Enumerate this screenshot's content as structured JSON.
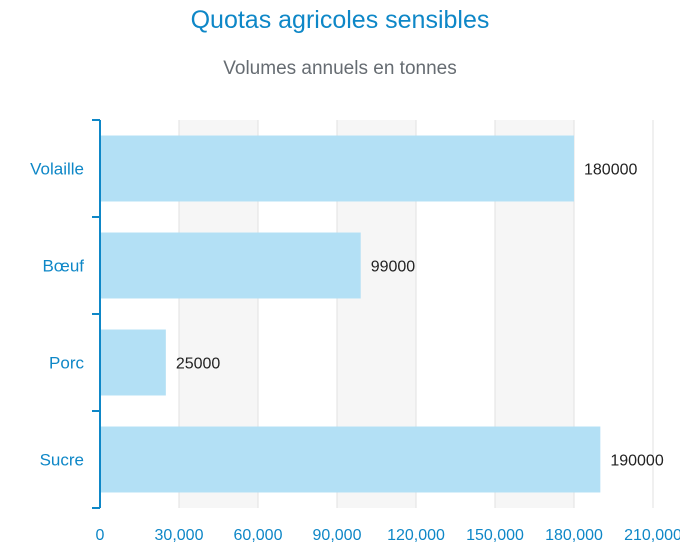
{
  "chart_data": {
    "type": "bar",
    "orientation": "horizontal",
    "title": "Quotas agricoles sensibles",
    "subtitle": "Volumes annuels en tonnes",
    "categories": [
      "Volaille",
      "Bœuf",
      "Porc",
      "Sucre"
    ],
    "values": [
      180000,
      99000,
      25000,
      190000
    ],
    "data_labels": [
      "180000",
      "99000",
      "25000",
      "190000"
    ],
    "xlim": [
      0,
      210000
    ],
    "x_ticks": [
      0,
      30000,
      60000,
      90000,
      120000,
      150000,
      180000,
      210000
    ],
    "x_tick_labels": [
      "0",
      "30,000",
      "60,000",
      "90,000",
      "120,000",
      "150,000",
      "180,000",
      "210,000"
    ],
    "grid": true,
    "legend": "none",
    "colors": {
      "bar": "#b3e0f5",
      "title": "#0e87c7",
      "axis": "#0e87c7",
      "subtitle": "#666c72",
      "grid_band": "#f6f6f6",
      "grid_line": "#e2e2e2"
    }
  }
}
